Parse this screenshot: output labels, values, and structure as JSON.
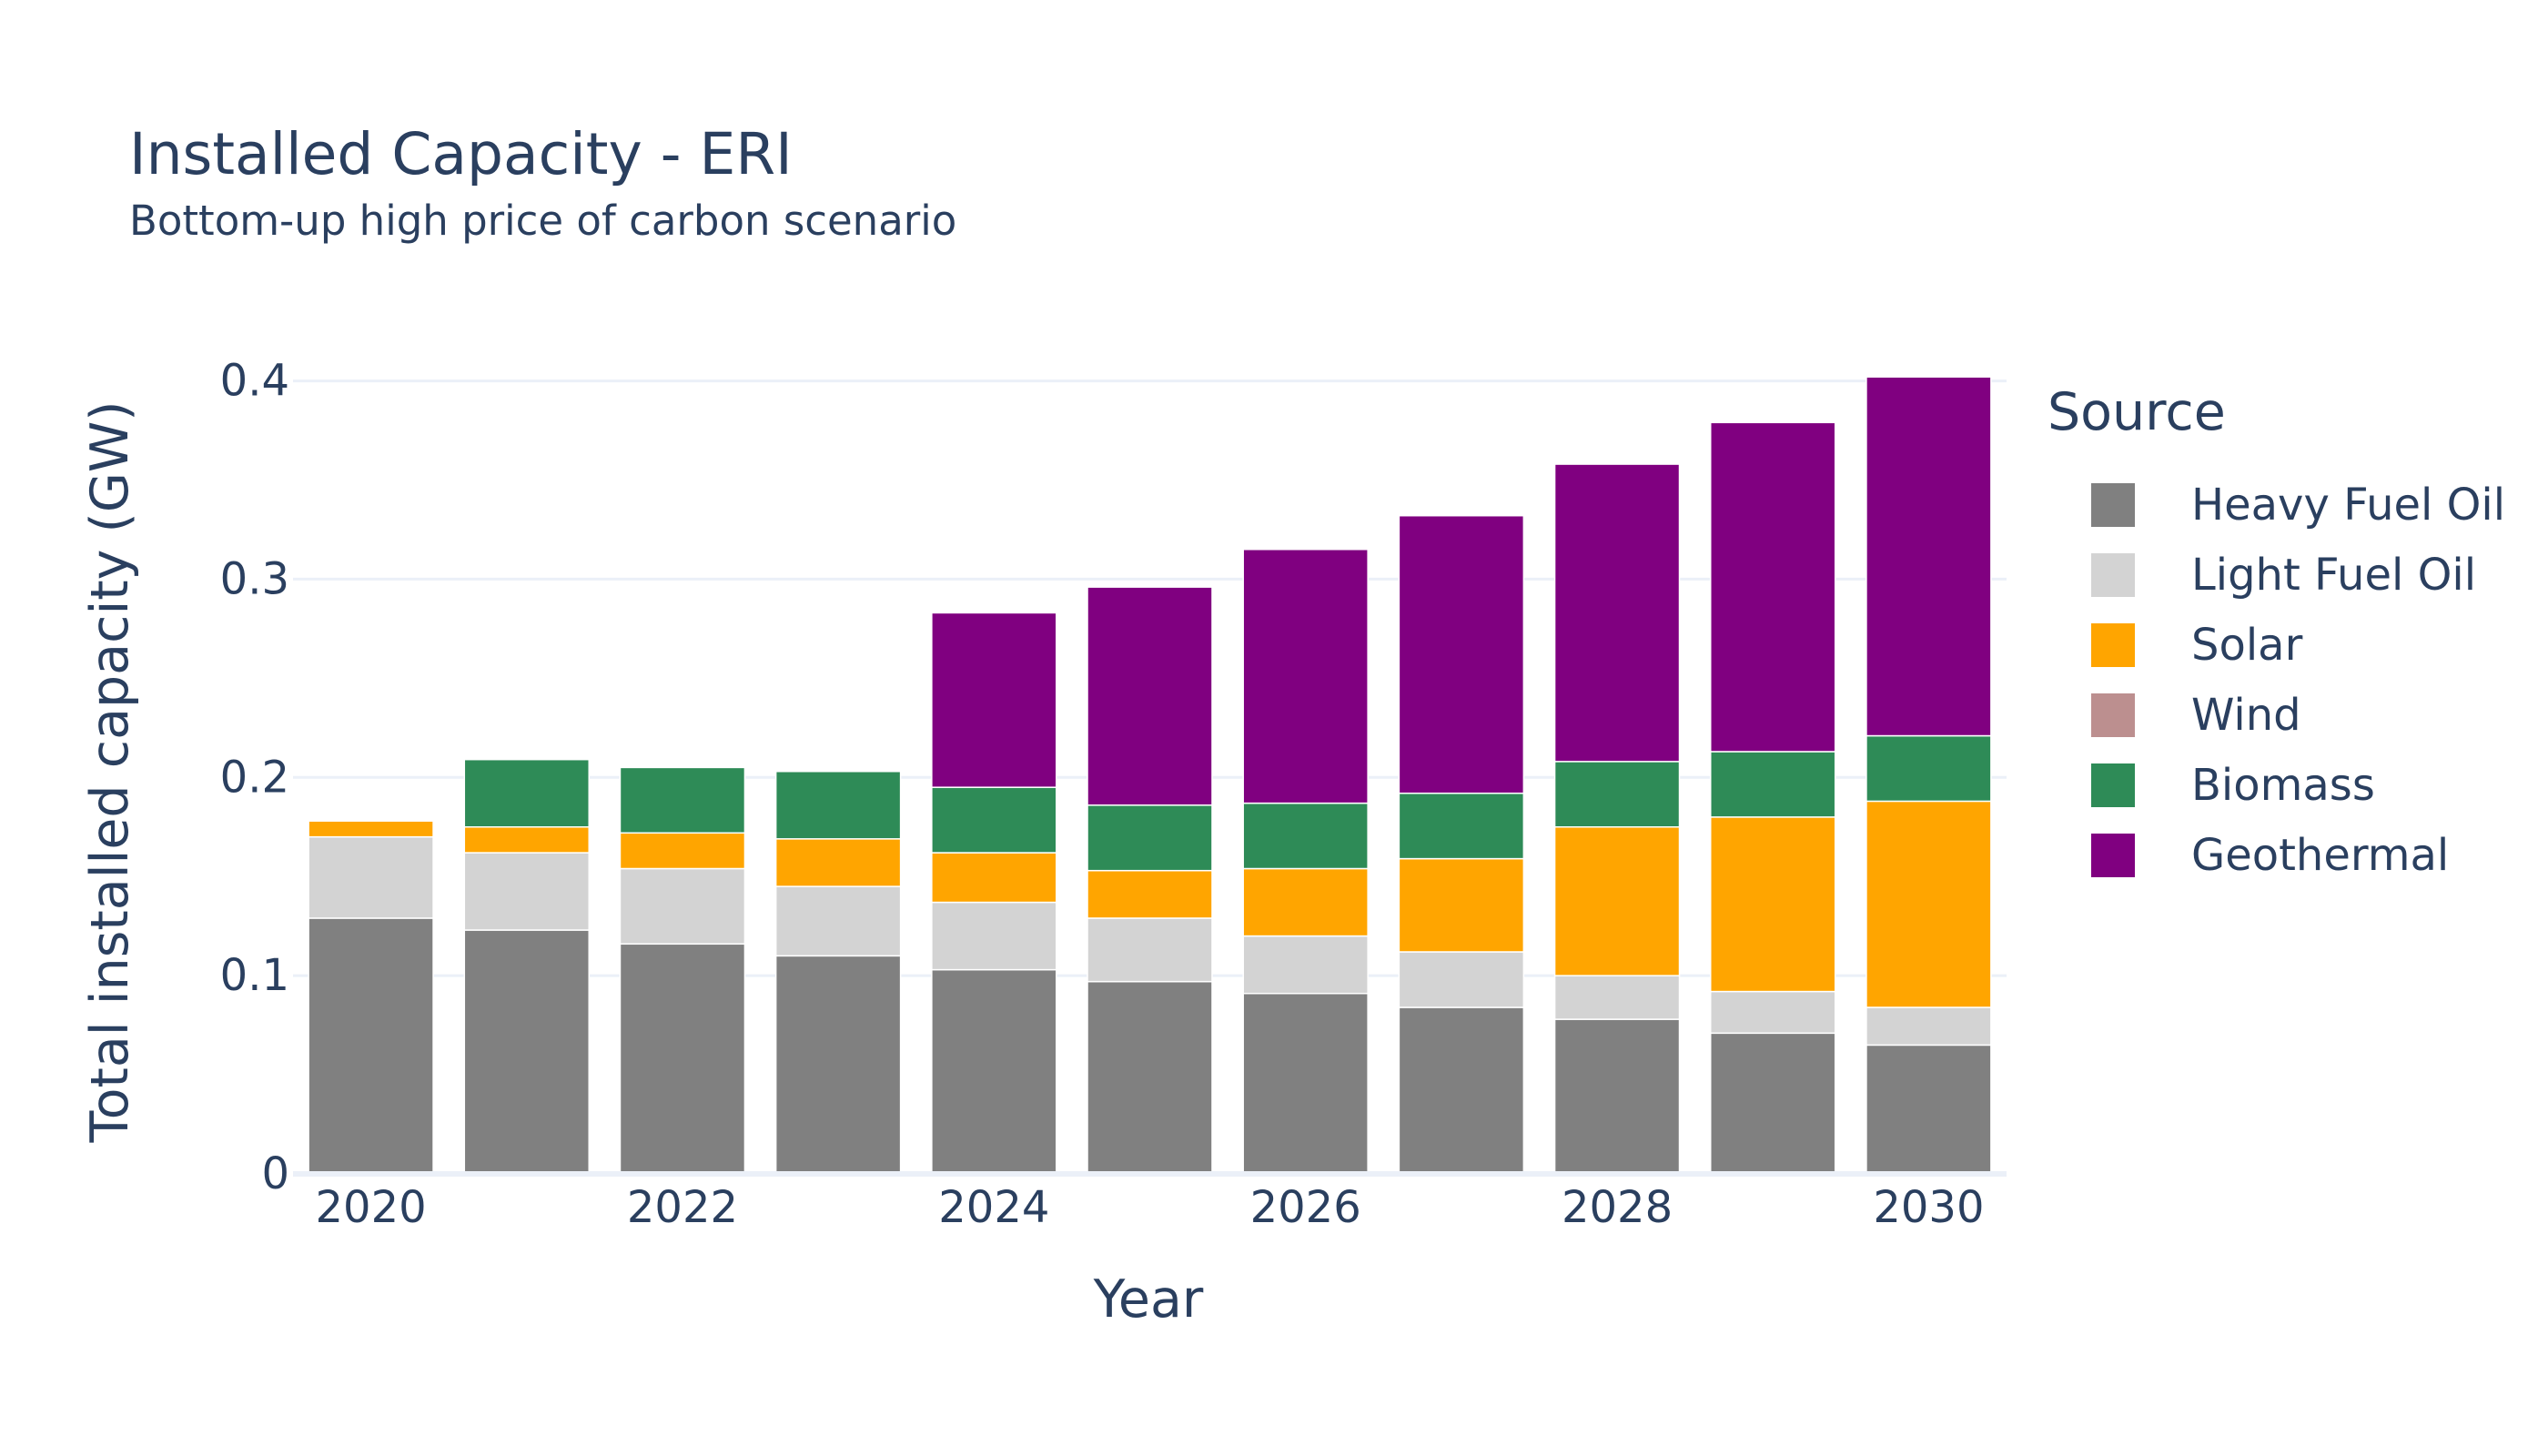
{
  "chart_data": {
    "type": "bar",
    "stacked": true,
    "title": "Installed Capacity - ERI",
    "subtitle": "Bottom-up high price of carbon scenario",
    "xlabel": "Year",
    "ylabel": "Total installed capacity (GW)",
    "x": [
      2020,
      2021,
      2022,
      2023,
      2024,
      2025,
      2026,
      2027,
      2028,
      2029,
      2030
    ],
    "x_ticks": [
      "2020",
      "2022",
      "2024",
      "2026",
      "2028",
      "2030"
    ],
    "y_ticks": [
      "0",
      "0.1",
      "0.2",
      "0.3",
      "0.4"
    ],
    "ylim": [
      0,
      0.42
    ],
    "grid": true,
    "legend_title": "Source",
    "legend_position": "right",
    "series": [
      {
        "name": "Heavy Fuel Oil",
        "color": "#808080",
        "values": [
          0.129,
          0.123,
          0.116,
          0.11,
          0.103,
          0.097,
          0.091,
          0.084,
          0.078,
          0.071,
          0.065
        ]
      },
      {
        "name": "Light Fuel Oil",
        "color": "#d3d3d3",
        "values": [
          0.041,
          0.039,
          0.038,
          0.035,
          0.034,
          0.032,
          0.029,
          0.028,
          0.022,
          0.021,
          0.019
        ]
      },
      {
        "name": "Solar",
        "color": "#ffa500",
        "values": [
          0.008,
          0.013,
          0.018,
          0.024,
          0.025,
          0.024,
          0.034,
          0.047,
          0.075,
          0.088,
          0.104
        ]
      },
      {
        "name": "Wind",
        "color": "#bc8f8f",
        "values": [
          0,
          0,
          0,
          0,
          0,
          0,
          0,
          0,
          0,
          0,
          0
        ]
      },
      {
        "name": "Biomass",
        "color": "#2e8b57",
        "values": [
          0,
          0.034,
          0.033,
          0.034,
          0.033,
          0.033,
          0.033,
          0.033,
          0.033,
          0.033,
          0.033
        ]
      },
      {
        "name": "Geothermal",
        "color": "#800080",
        "values": [
          0,
          0,
          0,
          0,
          0.088,
          0.11,
          0.128,
          0.14,
          0.15,
          0.166,
          0.181
        ]
      }
    ]
  }
}
